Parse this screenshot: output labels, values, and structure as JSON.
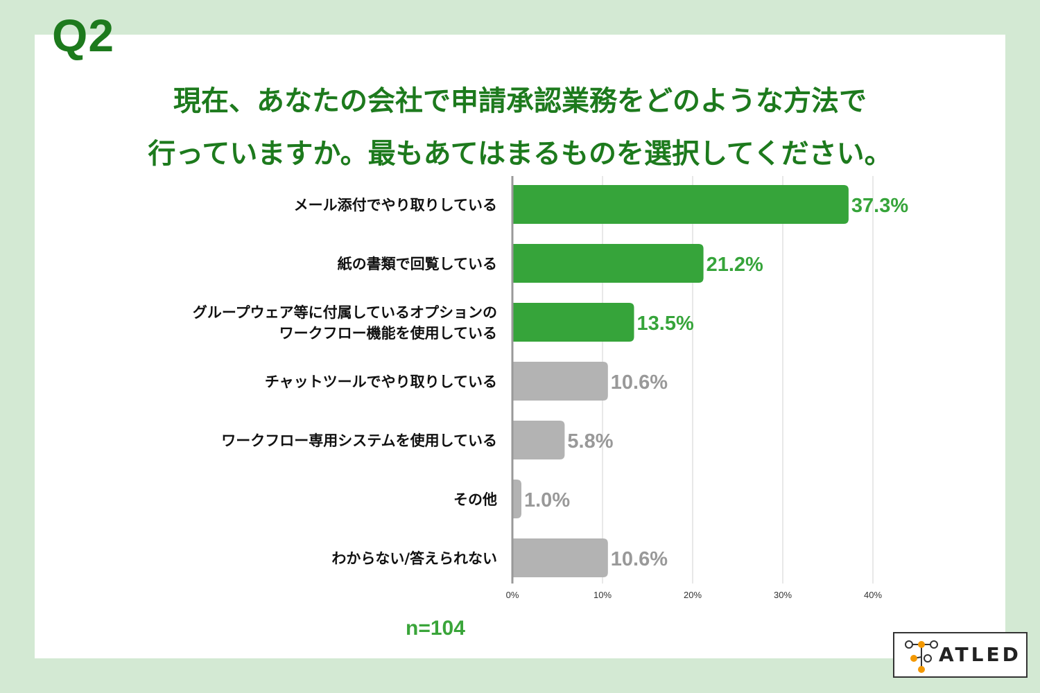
{
  "question_number": "Q2",
  "title_lines": [
    "現在、あなたの会社で申請承認業務をどのような方法で",
    "行っていますか。最もあてはまるものを選択してください。"
  ],
  "sample_size": "n=104",
  "brand": {
    "logo_text": "ATLED",
    "accent": "#f39800"
  },
  "colors": {
    "background": "#d3e9d3",
    "title": "#1d7a1d",
    "bar_highlight": "#36a43a",
    "bar_other": "#b3b3b3",
    "label_highlight": "#36a43a",
    "label_other": "#999999"
  },
  "chart_data": {
    "type": "bar",
    "orientation": "horizontal",
    "categories": [
      [
        "メール添付でやり取りしている"
      ],
      [
        "紙の書類で回覧している"
      ],
      [
        "グループウェア等に付属しているオプションの",
        "ワークフロー機能を使用している"
      ],
      [
        "チャットツールでやり取りしている"
      ],
      [
        "ワークフロー専用システムを使用している"
      ],
      [
        "その他"
      ],
      [
        "わからない/答えられない"
      ]
    ],
    "values": [
      37.3,
      21.2,
      13.5,
      10.6,
      5.8,
      1.0,
      10.6
    ],
    "value_labels": [
      "37.3%",
      "21.2%",
      "13.5%",
      "10.6%",
      "5.8%",
      "1.0%",
      "10.6%"
    ],
    "highlight": [
      true,
      true,
      true,
      false,
      false,
      false,
      false
    ],
    "xlim": [
      0,
      40
    ],
    "xticks": [
      0,
      10,
      20,
      30,
      40
    ],
    "xtick_labels": [
      "0%",
      "10%",
      "20%",
      "30%",
      "40%"
    ],
    "grid": true
  }
}
